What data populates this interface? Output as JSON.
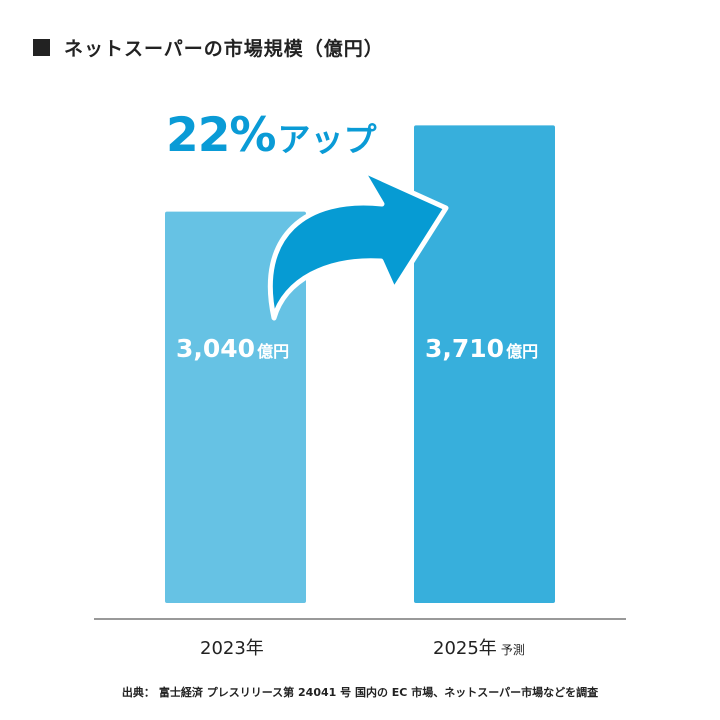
{
  "title": "ネットスーパーの市場規模（億円）",
  "chart_data": {
    "type": "bar",
    "title": "ネットスーパーの市場規模（億円）",
    "unit": "億円",
    "categories": [
      "2023年",
      "2025年"
    ],
    "category_notes": [
      "",
      "予測"
    ],
    "values": [
      3040,
      3710
    ],
    "value_labels": [
      "3,040",
      "3,710"
    ],
    "bar_colors": [
      "#66c2e4",
      "#37afdc"
    ],
    "ylim": [
      0,
      4000
    ],
    "grid": false,
    "annotation": {
      "text_pct": "22%",
      "text_word": "アップ",
      "color": "#0a9bd6"
    }
  },
  "source": {
    "label": "出典：",
    "text": "富士経済 プレスリリース第 24041 号 国内の EC 市場、ネットスーパー市場などを調査"
  },
  "colors": {
    "text": "#222222",
    "axis": "#999999",
    "accent": "#0a9bd6"
  }
}
